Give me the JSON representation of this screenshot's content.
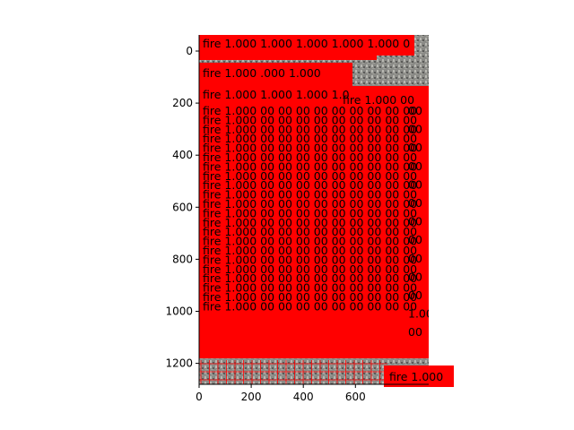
{
  "xaxis": {
    "ticks": [
      "0",
      "200",
      "400",
      "600"
    ]
  },
  "yaxis": {
    "ticks": [
      "0",
      "200",
      "400",
      "600",
      "800",
      "1000",
      "1200"
    ]
  },
  "detections": {
    "class_name": "fire",
    "score_text": "1.000",
    "box_color": "#ff0000",
    "label_rows": [
      "fire 1.000 1.000  1.000  1.000  1.000  0",
      "fire 1.000 .000  1.000",
      "fire 1.000 1.000  1.000  1.0",
      "fire 1.000 00 00 00 00 00 00 00 00 00",
      "fire 1.000 00 00 00 00 00 00 00 00 00",
      "fire 1.000 00 00 00 00 00 00 00 00 00",
      "fire 1.000 00 00 00 00 00 00 00 00 00",
      "fire 1.000 00 00 00 00 00 00 00 00 00",
      "fire 1.000 00 00 00 00 00 00 00 00 00",
      "fire 1.000 00 00 00 00 00 00 00 00 00",
      "fire 1.000 00 00 00 00 00 00 00 00 00",
      "fire 1.000 00 00 00 00 00 00 00 00 00",
      "fire 1.000 00 00 00 00 00 00 00 00 00",
      "fire 1.000 00 00 00 00 00 00 00 00 00",
      "fire 1.000 00 00 00 00 00 00 00 00 00",
      "fire 1.000 00 00 00 00 00 00 00 00 00",
      "fire 1.000 00 00 00 00 00 00 00 00 00",
      "fire 1.000 00 00 00 00 00 00 00 00 00",
      "fire 1.000 00 00 00 00 00 00 00 00 00",
      "fire 1.000 00 00 00 00 00 00 00 00 00",
      "fire 1.000 00 00 00 00 00 00 00 00 00",
      "fire 1.000 00 00 00 00 00 00 00 00 00",
      "fire 1.000 00 00 00 00 00 00 00 00 00",
      "fire 1.000 00 00 00 00 00 00 00 00 00",
      "fire 1.000 00 00 00 00 00 00 00 00 00"
    ],
    "right_column_labels": [
      "fire 1.000 00",
      "00",
      "00",
      "00",
      "00",
      "00",
      "00",
      "00",
      "00",
      "00",
      "00",
      "00",
      "1.000",
      "00"
    ],
    "bottom_label": "fire 1.000"
  }
}
